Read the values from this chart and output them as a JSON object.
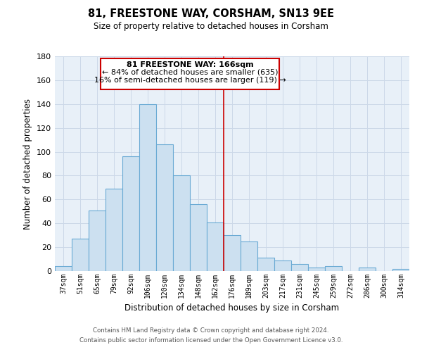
{
  "title": "81, FREESTONE WAY, CORSHAM, SN13 9EE",
  "subtitle": "Size of property relative to detached houses in Corsham",
  "xlabel": "Distribution of detached houses by size in Corsham",
  "ylabel": "Number of detached properties",
  "bar_labels": [
    "37sqm",
    "51sqm",
    "65sqm",
    "79sqm",
    "92sqm",
    "106sqm",
    "120sqm",
    "134sqm",
    "148sqm",
    "162sqm",
    "176sqm",
    "189sqm",
    "203sqm",
    "217sqm",
    "231sqm",
    "245sqm",
    "259sqm",
    "272sqm",
    "286sqm",
    "300sqm",
    "314sqm"
  ],
  "bar_values": [
    4,
    27,
    51,
    69,
    96,
    140,
    106,
    80,
    56,
    41,
    30,
    25,
    11,
    9,
    6,
    3,
    4,
    0,
    3,
    0,
    2
  ],
  "bar_color": "#cce0f0",
  "bar_edge_color": "#6aaad4",
  "vline_x": 9.5,
  "vline_color": "#cc0000",
  "annotation_title": "81 FREESTONE WAY: 166sqm",
  "annotation_line1": "← 84% of detached houses are smaller (635)",
  "annotation_line2": "16% of semi-detached houses are larger (119) →",
  "annotation_box_color": "#ffffff",
  "annotation_box_edge_color": "#cc0000",
  "ylim": [
    0,
    180
  ],
  "yticks": [
    0,
    20,
    40,
    60,
    80,
    100,
    120,
    140,
    160,
    180
  ],
  "footer_line1": "Contains HM Land Registry data © Crown copyright and database right 2024.",
  "footer_line2": "Contains public sector information licensed under the Open Government Licence v3.0.",
  "background_color": "#ffffff",
  "grid_color": "#ccd8e8",
  "axes_bg_color": "#e8f0f8"
}
